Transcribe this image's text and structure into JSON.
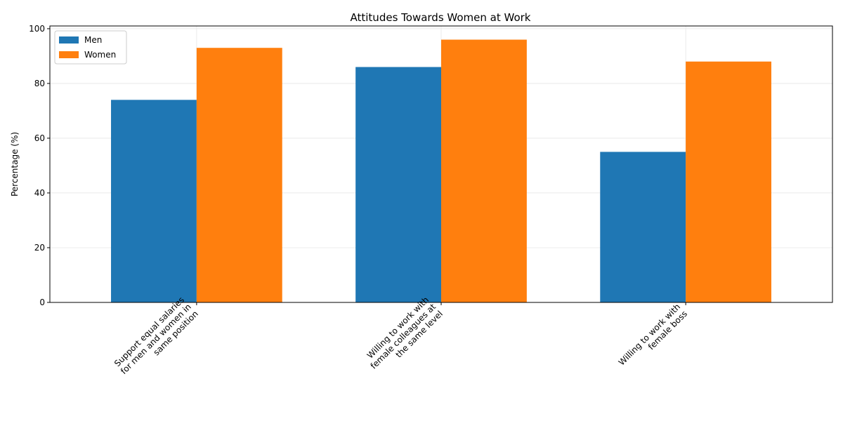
{
  "chart_data": {
    "type": "bar",
    "title": "Attitudes Towards Women at Work",
    "xlabel": "",
    "ylabel": "Percentage (%)",
    "ylim": [
      0,
      101
    ],
    "yticks": [
      0,
      20,
      40,
      60,
      80,
      100
    ],
    "categories": [
      "Support equal salaries for men and women in same position",
      "Willing to work with female colleagues at the same level",
      "Willing to work with female boss"
    ],
    "category_label_lines": [
      [
        "Support equal salaries",
        "for men and women in",
        "same position"
      ],
      [
        "Willing to work with",
        "female colleagues at",
        "the same level"
      ],
      [
        "Willing to work with",
        "female boss"
      ]
    ],
    "series": [
      {
        "name": "Men",
        "color": "#1f77b4",
        "values": [
          74,
          86,
          55
        ]
      },
      {
        "name": "Women",
        "color": "#ff7f0e",
        "values": [
          93,
          96,
          88
        ]
      }
    ],
    "grid": true,
    "legend_position": "top-left"
  }
}
